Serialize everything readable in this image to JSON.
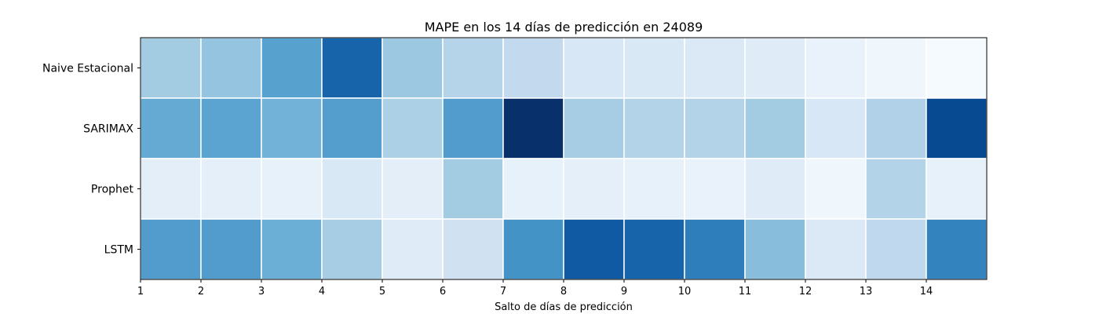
{
  "chart_data": {
    "type": "heatmap",
    "title": "MAPE en los 14 días de predicción en 24089",
    "xlabel": "Salto de días de predicción",
    "ylabel": "",
    "colormap": "Blues",
    "rows": [
      "Naive Estacional",
      "SARIMAX",
      "Prophet",
      "LSTM"
    ],
    "x_ticks": [
      "1",
      "2",
      "3",
      "4",
      "5",
      "6",
      "7",
      "8",
      "9",
      "10",
      "11",
      "12",
      "13",
      "14"
    ],
    "values": [
      [
        0.36,
        0.4,
        0.56,
        0.8,
        0.38,
        0.3,
        0.26,
        0.16,
        0.15,
        0.14,
        0.12,
        0.07,
        0.04,
        0.01
      ],
      [
        0.52,
        0.55,
        0.48,
        0.57,
        0.33,
        0.58,
        1.0,
        0.35,
        0.31,
        0.31,
        0.36,
        0.16,
        0.32,
        0.9
      ],
      [
        0.1,
        0.09,
        0.08,
        0.15,
        0.1,
        0.36,
        0.08,
        0.09,
        0.08,
        0.07,
        0.12,
        0.04,
        0.31,
        0.08
      ],
      [
        0.58,
        0.58,
        0.5,
        0.35,
        0.12,
        0.2,
        0.62,
        0.84,
        0.8,
        0.7,
        0.43,
        0.14,
        0.27,
        0.68
      ]
    ],
    "grid": true,
    "legend": "none"
  }
}
